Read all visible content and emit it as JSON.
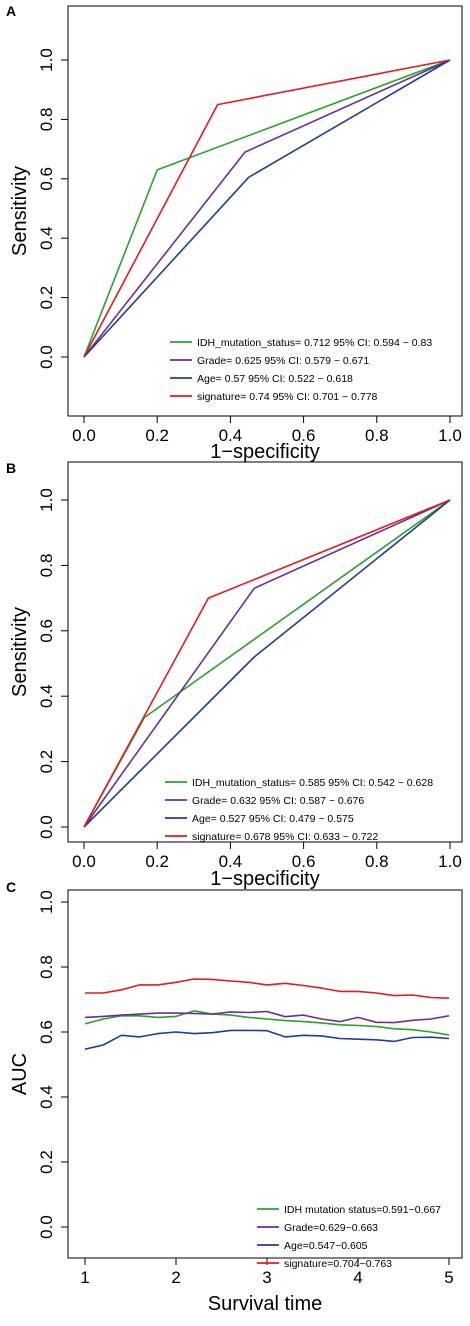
{
  "colors": {
    "green": "#2ca02c",
    "purple": "#6a2e9a",
    "blue": "#1f3d99",
    "red": "#e41a1c"
  },
  "chart_data": [
    {
      "panel": "A",
      "type": "line",
      "xlabel": "1−specificity",
      "ylabel": "Sensitivity",
      "xlim": [
        0,
        1
      ],
      "ylim": [
        0,
        1
      ],
      "xticks": [
        "0.0",
        "0.2",
        "0.4",
        "0.6",
        "0.8",
        "1.0"
      ],
      "yticks": [
        "0.0",
        "0.2",
        "0.4",
        "0.6",
        "0.8",
        "1.0"
      ],
      "grid": false,
      "legend_position": "bottom-right",
      "series": [
        {
          "name": "IDH_mutation_status= 0.712  95% CI: 0.594 ~ 0.83",
          "color": "#2ca02c",
          "x": [
            0,
            0.2,
            1
          ],
          "y": [
            0,
            0.63,
            1
          ]
        },
        {
          "name": "Grade= 0.625  95% CI: 0.579 ~ 0.671",
          "color": "#6a2e9a",
          "x": [
            0,
            0.44,
            1
          ],
          "y": [
            0,
            0.69,
            1
          ]
        },
        {
          "name": "Age= 0.57  95% CI: 0.522 ~ 0.618",
          "color": "#1f3d99",
          "x": [
            0,
            0.45,
            1
          ],
          "y": [
            0,
            0.605,
            1
          ]
        },
        {
          "name": "signature= 0.74  95% CI: 0.701 ~ 0.778",
          "color": "#e41a1c",
          "x": [
            0,
            0.365,
            1
          ],
          "y": [
            0,
            0.85,
            1
          ]
        }
      ]
    },
    {
      "panel": "B",
      "type": "line",
      "xlabel": "1−specificity",
      "ylabel": "Sensitivity",
      "xlim": [
        0,
        1
      ],
      "ylim": [
        0,
        1
      ],
      "xticks": [
        "0.0",
        "0.2",
        "0.4",
        "0.6",
        "0.8",
        "1.0"
      ],
      "yticks": [
        "0.0",
        "0.2",
        "0.4",
        "0.6",
        "0.8",
        "1.0"
      ],
      "grid": false,
      "legend_position": "bottom-right",
      "series": [
        {
          "name": "IDH_mutation_status= 0.585  95% CI: 0.542 ~ 0.628",
          "color": "#2ca02c",
          "x": [
            0,
            0.165,
            1
          ],
          "y": [
            0,
            0.335,
            1
          ]
        },
        {
          "name": "Grade= 0.632  95% CI: 0.587 ~ 0.676",
          "color": "#6a2e9a",
          "x": [
            0,
            0.465,
            1
          ],
          "y": [
            0,
            0.73,
            1
          ]
        },
        {
          "name": "Age= 0.527  95% CI: 0.479 ~ 0.575",
          "color": "#1f3d99",
          "x": [
            0,
            0.465,
            1
          ],
          "y": [
            0,
            0.52,
            1
          ]
        },
        {
          "name": "signature= 0.678  95% CI: 0.633 ~ 0.722",
          "color": "#e41a1c",
          "x": [
            0,
            0.34,
            1
          ],
          "y": [
            0,
            0.7,
            1
          ]
        }
      ]
    },
    {
      "panel": "C",
      "type": "line",
      "xlabel": "Survival time",
      "ylabel": "AUC",
      "xlim": [
        1,
        5
      ],
      "ylim": [
        0,
        1
      ],
      "xticks": [
        "1",
        "2",
        "3",
        "4",
        "5"
      ],
      "yticks": [
        "0.0",
        "0.2",
        "0.4",
        "0.6",
        "0.8",
        "1.0"
      ],
      "grid": false,
      "legend_position": "bottom-right",
      "x": [
        1,
        1.2,
        1.4,
        1.6,
        1.8,
        2,
        2.2,
        2.4,
        2.6,
        2.8,
        3,
        3.2,
        3.4,
        3.6,
        3.8,
        4,
        4.2,
        4.4,
        4.6,
        4.8,
        5
      ],
      "series": [
        {
          "name": "IDH mutation status=0.591~0.667",
          "color": "#2ca02c",
          "values": [
            0.625,
            0.64,
            0.65,
            0.65,
            0.645,
            0.648,
            0.665,
            0.655,
            0.652,
            0.645,
            0.64,
            0.635,
            0.632,
            0.628,
            0.622,
            0.62,
            0.617,
            0.61,
            0.607,
            0.6,
            0.591
          ]
        },
        {
          "name": "Grade=0.629~0.663",
          "color": "#6a2e9a",
          "values": [
            0.645,
            0.648,
            0.652,
            0.655,
            0.658,
            0.658,
            0.657,
            0.655,
            0.662,
            0.66,
            0.663,
            0.647,
            0.652,
            0.64,
            0.632,
            0.645,
            0.63,
            0.629,
            0.636,
            0.64,
            0.65
          ]
        },
        {
          "name": "Age=0.547~0.605",
          "color": "#1f3d99",
          "values": [
            0.547,
            0.56,
            0.59,
            0.585,
            0.595,
            0.6,
            0.595,
            0.598,
            0.605,
            0.605,
            0.604,
            0.585,
            0.59,
            0.588,
            0.58,
            0.578,
            0.576,
            0.571,
            0.583,
            0.584,
            0.58
          ]
        },
        {
          "name": "signature=0.704~0.763",
          "color": "#e41a1c",
          "values": [
            0.72,
            0.72,
            0.73,
            0.745,
            0.745,
            0.753,
            0.763,
            0.762,
            0.757,
            0.753,
            0.745,
            0.75,
            0.743,
            0.735,
            0.725,
            0.725,
            0.72,
            0.712,
            0.714,
            0.706,
            0.704
          ]
        }
      ]
    }
  ]
}
